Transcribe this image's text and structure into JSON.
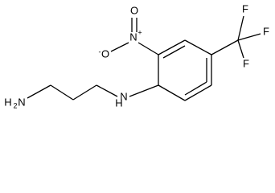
{
  "labels": {
    "amine": {
      "h": "H",
      "sub": "2",
      "n": "N"
    },
    "nh": {
      "n": "N",
      "h": "H"
    },
    "nitro": {
      "n": "N",
      "charge": "+",
      "o_top": "O",
      "o_left": "O",
      "o_charge": "-"
    },
    "fluorines": [
      "F",
      "F",
      "F"
    ]
  }
}
